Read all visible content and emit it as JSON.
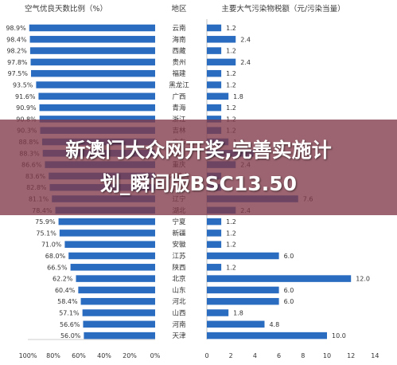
{
  "chart_data": [
    {
      "type": "bar",
      "orientation": "horizontal",
      "axis_direction": "reversed",
      "title": "空气优良天数比例（%）",
      "categories": [
        "云南",
        "海南",
        "西藏",
        "贵州",
        "福建",
        "黑龙江",
        "广西",
        "青海",
        "浙江",
        "吉林",
        "广东",
        "四川",
        "重庆",
        "内蒙古",
        "江西",
        "辽宁",
        "湖北",
        "宁夏",
        "新疆",
        "安徽",
        "江苏",
        "陕西",
        "北京",
        "山东",
        "河北",
        "山西",
        "河南",
        "天津"
      ],
      "values": [
        98.9,
        98.4,
        98.2,
        97.8,
        97.5,
        93.5,
        91.6,
        90.9,
        90.8,
        90.3,
        88.8,
        88.3,
        86.6,
        83.6,
        82.8,
        81.1,
        78.4,
        75.9,
        75.1,
        71.0,
        68.0,
        66.5,
        62.2,
        60.4,
        58.4,
        57.1,
        56.6,
        56.0
      ],
      "value_labels": [
        "98.9%",
        "98.4%",
        "98.2%",
        "97.8%",
        "97.5%",
        "93.5%",
        "91.6%",
        "90.9%",
        "90.8%",
        "90.3%",
        "88.8%",
        "88.3%",
        "86.6%",
        "83.6%",
        "82.8%",
        "81.1%",
        "78.4%",
        "75.9%",
        "75.1%",
        "71.0%",
        "68.0%",
        "66.5%",
        "62.2%",
        "60.4%",
        "58.4%",
        "57.1%",
        "56.6%",
        "56.0%"
      ],
      "xlim": [
        100,
        0
      ],
      "x_ticks": [
        "100%",
        "80%",
        "60%",
        "40%",
        "20%",
        "0%"
      ],
      "legend": "none",
      "grid": false
    },
    {
      "type": "bar",
      "orientation": "horizontal",
      "title": "主要大气污染物税额（元/污染当量）",
      "categories": [
        "云南",
        "海南",
        "西藏",
        "贵州",
        "福建",
        "黑龙江",
        "广西",
        "青海",
        "浙江",
        "吉林",
        "广东",
        "四川",
        "重庆",
        "内蒙古",
        "江西",
        "辽宁",
        "湖北",
        "宁夏",
        "新疆",
        "安徽",
        "江苏",
        "陕西",
        "北京",
        "山东",
        "河北",
        "山西",
        "河南",
        "天津"
      ],
      "values": [
        1.2,
        2.4,
        1.2,
        2.4,
        1.2,
        1.2,
        1.8,
        1.2,
        1.2,
        1.2,
        1.8,
        3.9,
        2.4,
        1.2,
        1.2,
        7.6,
        2.4,
        1.2,
        1.2,
        1.2,
        6.0,
        1.2,
        12.0,
        6.0,
        6.0,
        1.8,
        4.8,
        10.0
      ],
      "value_labels": [
        "1.2",
        "2.4",
        "1.2",
        "2.4",
        "1.2",
        "1.2",
        "1.8",
        "1.2",
        "1.2",
        "1.2",
        "1.8",
        "",
        "2.4",
        "",
        "",
        "7.6",
        "2.4",
        "1.2",
        "1.2",
        "1.2",
        "6.0",
        "1.2",
        "12.0",
        "6.0",
        "6.0",
        "1.8",
        "4.8",
        "10.0"
      ],
      "xlim": [
        0,
        14
      ],
      "x_ticks": [
        "0",
        "2",
        "4",
        "6",
        "8",
        "10",
        "12",
        "14"
      ],
      "legend": "none",
      "grid": false
    }
  ],
  "region_header": "地区",
  "overlay": {
    "line1": "新澳门大众网开奖,完善实施计",
    "line2": "划_瞬间版BSC13.50"
  },
  "colors": {
    "bar": "#2a6cc0",
    "overlay": "#803848",
    "text": "#333333"
  }
}
